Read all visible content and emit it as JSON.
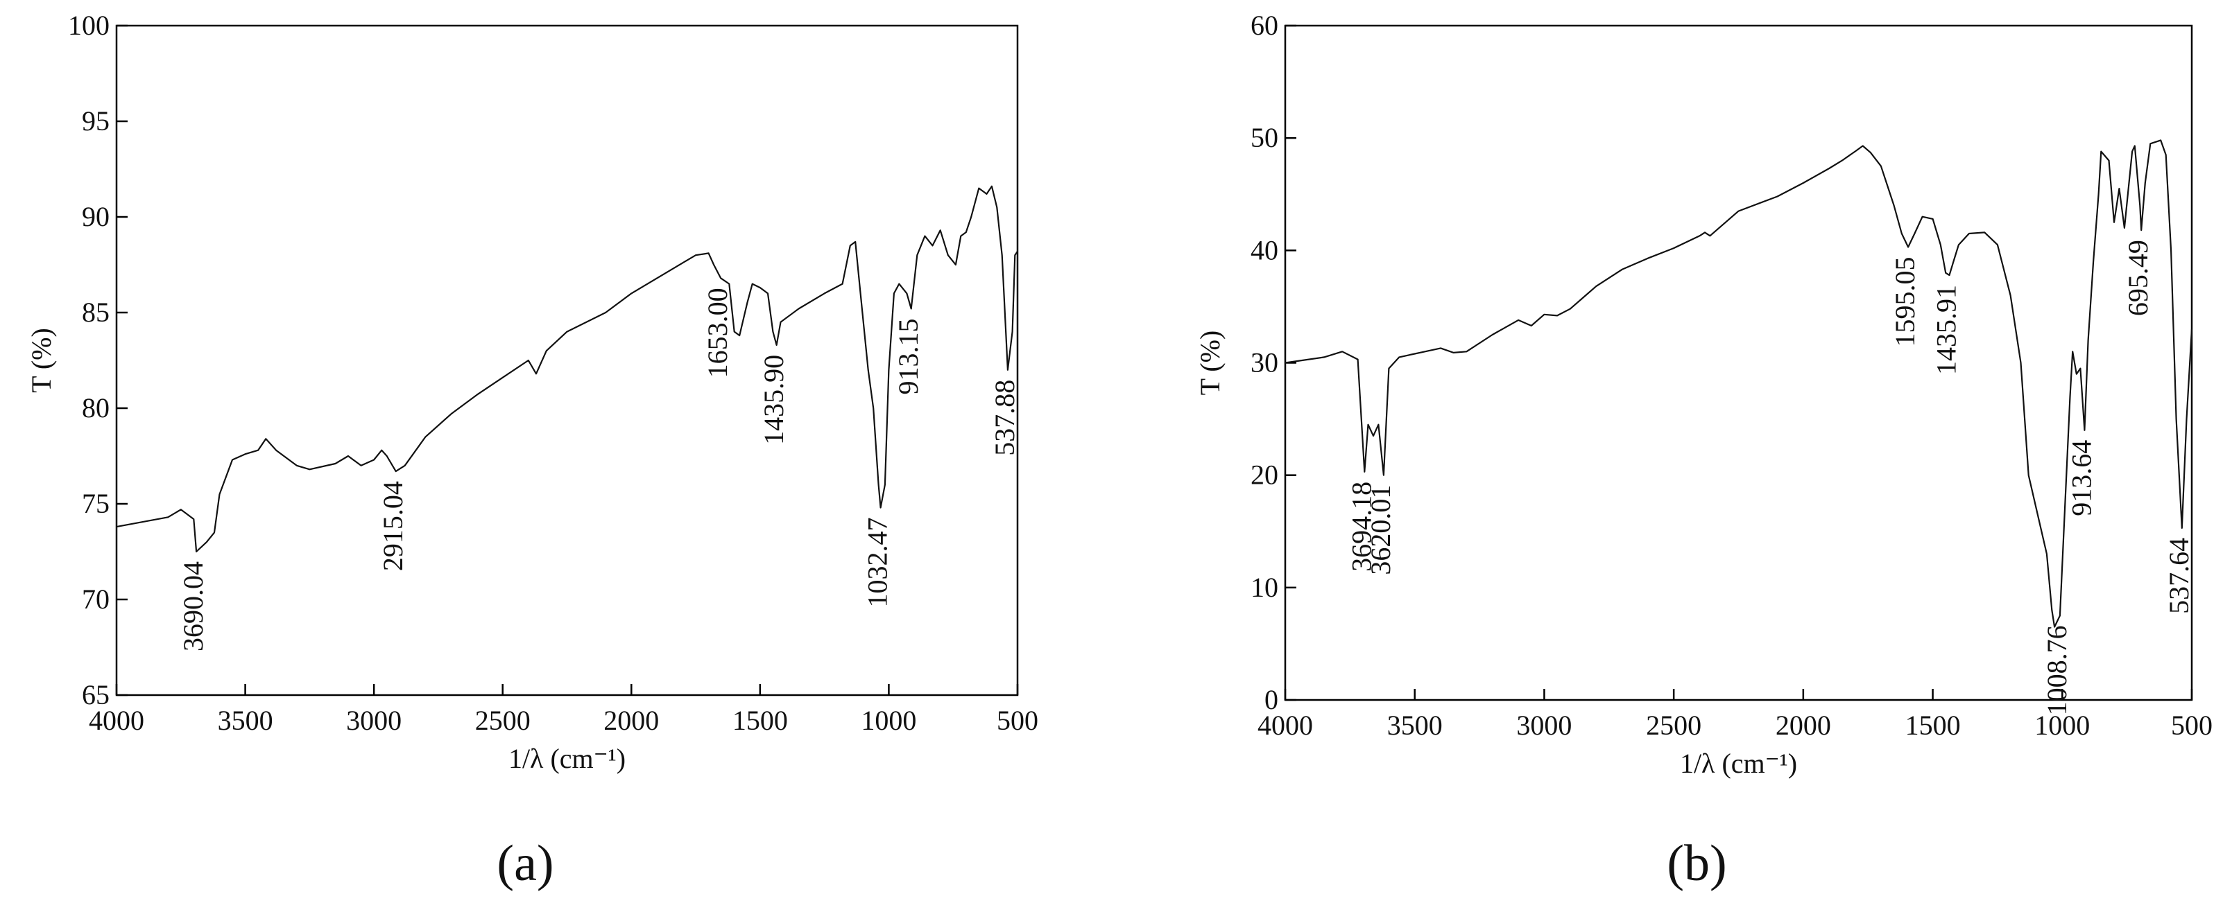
{
  "chart_data": [
    {
      "type": "line",
      "label": "(a)",
      "xlabel": "1/λ (cm⁻¹)",
      "ylabel": "T (%)",
      "color": "#111111",
      "xlim": [
        4000,
        500
      ],
      "xticks": [
        4000,
        3500,
        3000,
        2500,
        2000,
        1500,
        1000,
        500
      ],
      "ylim": [
        65,
        100
      ],
      "yticks": [
        65,
        70,
        75,
        80,
        85,
        90,
        95,
        100
      ],
      "x": [
        4000,
        3800,
        3750,
        3700,
        3690,
        3650,
        3620,
        3600,
        3550,
        3500,
        3450,
        3420,
        3380,
        3300,
        3250,
        3150,
        3100,
        3050,
        3000,
        2970,
        2950,
        2915,
        2880,
        2800,
        2700,
        2600,
        2500,
        2400,
        2370,
        2330,
        2250,
        2100,
        2000,
        1900,
        1800,
        1750,
        1700,
        1680,
        1653,
        1620,
        1600,
        1580,
        1550,
        1530,
        1500,
        1470,
        1450,
        1436,
        1420,
        1350,
        1250,
        1180,
        1150,
        1130,
        1110,
        1080,
        1060,
        1040,
        1032,
        1015,
        1000,
        980,
        960,
        930,
        913,
        890,
        860,
        830,
        800,
        770,
        740,
        720,
        700,
        680,
        650,
        620,
        600,
        580,
        560,
        538,
        520,
        510,
        500
      ],
      "values": [
        73.8,
        74.3,
        74.7,
        74.2,
        72.5,
        73.0,
        73.5,
        75.5,
        77.3,
        77.6,
        77.8,
        78.4,
        77.8,
        77.0,
        76.8,
        77.1,
        77.5,
        77.0,
        77.3,
        77.8,
        77.5,
        76.7,
        77.0,
        78.5,
        79.7,
        80.7,
        81.6,
        82.5,
        81.8,
        83.0,
        84.0,
        85.0,
        86.0,
        86.8,
        87.6,
        88.0,
        88.1,
        87.5,
        86.8,
        86.5,
        84.0,
        83.8,
        85.5,
        86.5,
        86.3,
        86.0,
        84.0,
        83.3,
        84.5,
        85.2,
        86.0,
        86.5,
        88.5,
        88.7,
        86.0,
        82.0,
        80.0,
        76.0,
        74.8,
        76.0,
        82.0,
        86.0,
        86.5,
        86.0,
        85.2,
        88.0,
        89.0,
        88.5,
        89.3,
        88.0,
        87.5,
        89.0,
        89.2,
        90.0,
        91.5,
        91.2,
        91.6,
        90.5,
        88.0,
        82.0,
        84.0,
        88.0,
        88.2
      ],
      "annotations": [
        {
          "text": "3690.04",
          "x": 3690.04
        },
        {
          "text": "2915.04",
          "x": 2915.04
        },
        {
          "text": "1653.00",
          "x": 1653.0
        },
        {
          "text": "1435.90",
          "x": 1435.9
        },
        {
          "text": "1032.47",
          "x": 1032.47
        },
        {
          "text": "913.15",
          "x": 913.15
        },
        {
          "text": "537.88",
          "x": 537.88
        }
      ]
    },
    {
      "type": "line",
      "label": "(b)",
      "xlabel": "1/λ (cm⁻¹)",
      "ylabel": "T (%)",
      "color": "#111111",
      "xlim": [
        4000,
        500
      ],
      "xticks": [
        4000,
        3500,
        3000,
        2500,
        2000,
        1500,
        1000,
        500
      ],
      "ylim": [
        0,
        60
      ],
      "yticks": [
        0,
        10,
        20,
        30,
        40,
        50,
        60
      ],
      "x": [
        4000,
        3850,
        3780,
        3720,
        3694,
        3680,
        3660,
        3640,
        3620,
        3600,
        3560,
        3500,
        3400,
        3350,
        3300,
        3200,
        3100,
        3050,
        3000,
        2950,
        2900,
        2800,
        2700,
        2600,
        2500,
        2400,
        2380,
        2360,
        2300,
        2250,
        2100,
        2000,
        1900,
        1850,
        1800,
        1770,
        1740,
        1700,
        1650,
        1620,
        1595,
        1570,
        1540,
        1500,
        1470,
        1450,
        1436,
        1420,
        1400,
        1360,
        1300,
        1250,
        1200,
        1160,
        1130,
        1100,
        1060,
        1040,
        1030,
        1009,
        990,
        970,
        960,
        945,
        930,
        914,
        900,
        880,
        860,
        850,
        820,
        800,
        780,
        760,
        730,
        720,
        700,
        695,
        680,
        660,
        620,
        600,
        580,
        560,
        538,
        520,
        500
      ],
      "values": [
        30.0,
        30.5,
        31.0,
        30.3,
        20.3,
        24.5,
        23.5,
        24.5,
        20.0,
        29.5,
        30.5,
        30.8,
        31.3,
        30.9,
        31.0,
        32.5,
        33.8,
        33.3,
        34.3,
        34.2,
        34.8,
        36.8,
        38.3,
        39.3,
        40.2,
        41.3,
        41.6,
        41.3,
        42.5,
        43.5,
        44.8,
        46.0,
        47.3,
        48.0,
        48.8,
        49.3,
        48.7,
        47.5,
        44.0,
        41.5,
        40.3,
        41.5,
        43.0,
        42.8,
        40.5,
        38.0,
        37.8,
        39.0,
        40.5,
        41.5,
        41.6,
        40.5,
        36.0,
        30.0,
        20.0,
        17.0,
        13.0,
        8.0,
        6.5,
        7.5,
        17.0,
        27.0,
        31.0,
        29.0,
        29.5,
        24.0,
        32.0,
        39.0,
        45.0,
        48.8,
        48.0,
        42.5,
        45.5,
        42.0,
        48.8,
        49.3,
        44.0,
        41.8,
        46.0,
        49.5,
        49.8,
        48.5,
        40.0,
        25.0,
        15.3,
        25.0,
        33.0
      ],
      "annotations": [
        {
          "text": "3694.18",
          "x": 3694.18
        },
        {
          "text": "3620.01",
          "x": 3620.01
        },
        {
          "text": "1595.05",
          "x": 1595.05
        },
        {
          "text": "1435.91",
          "x": 1435.91
        },
        {
          "text": "1008.76",
          "x": 1008.76
        },
        {
          "text": "913.64",
          "x": 913.64
        },
        {
          "text": "695.49",
          "x": 695.49
        },
        {
          "text": "537.64",
          "x": 537.64
        }
      ]
    }
  ]
}
